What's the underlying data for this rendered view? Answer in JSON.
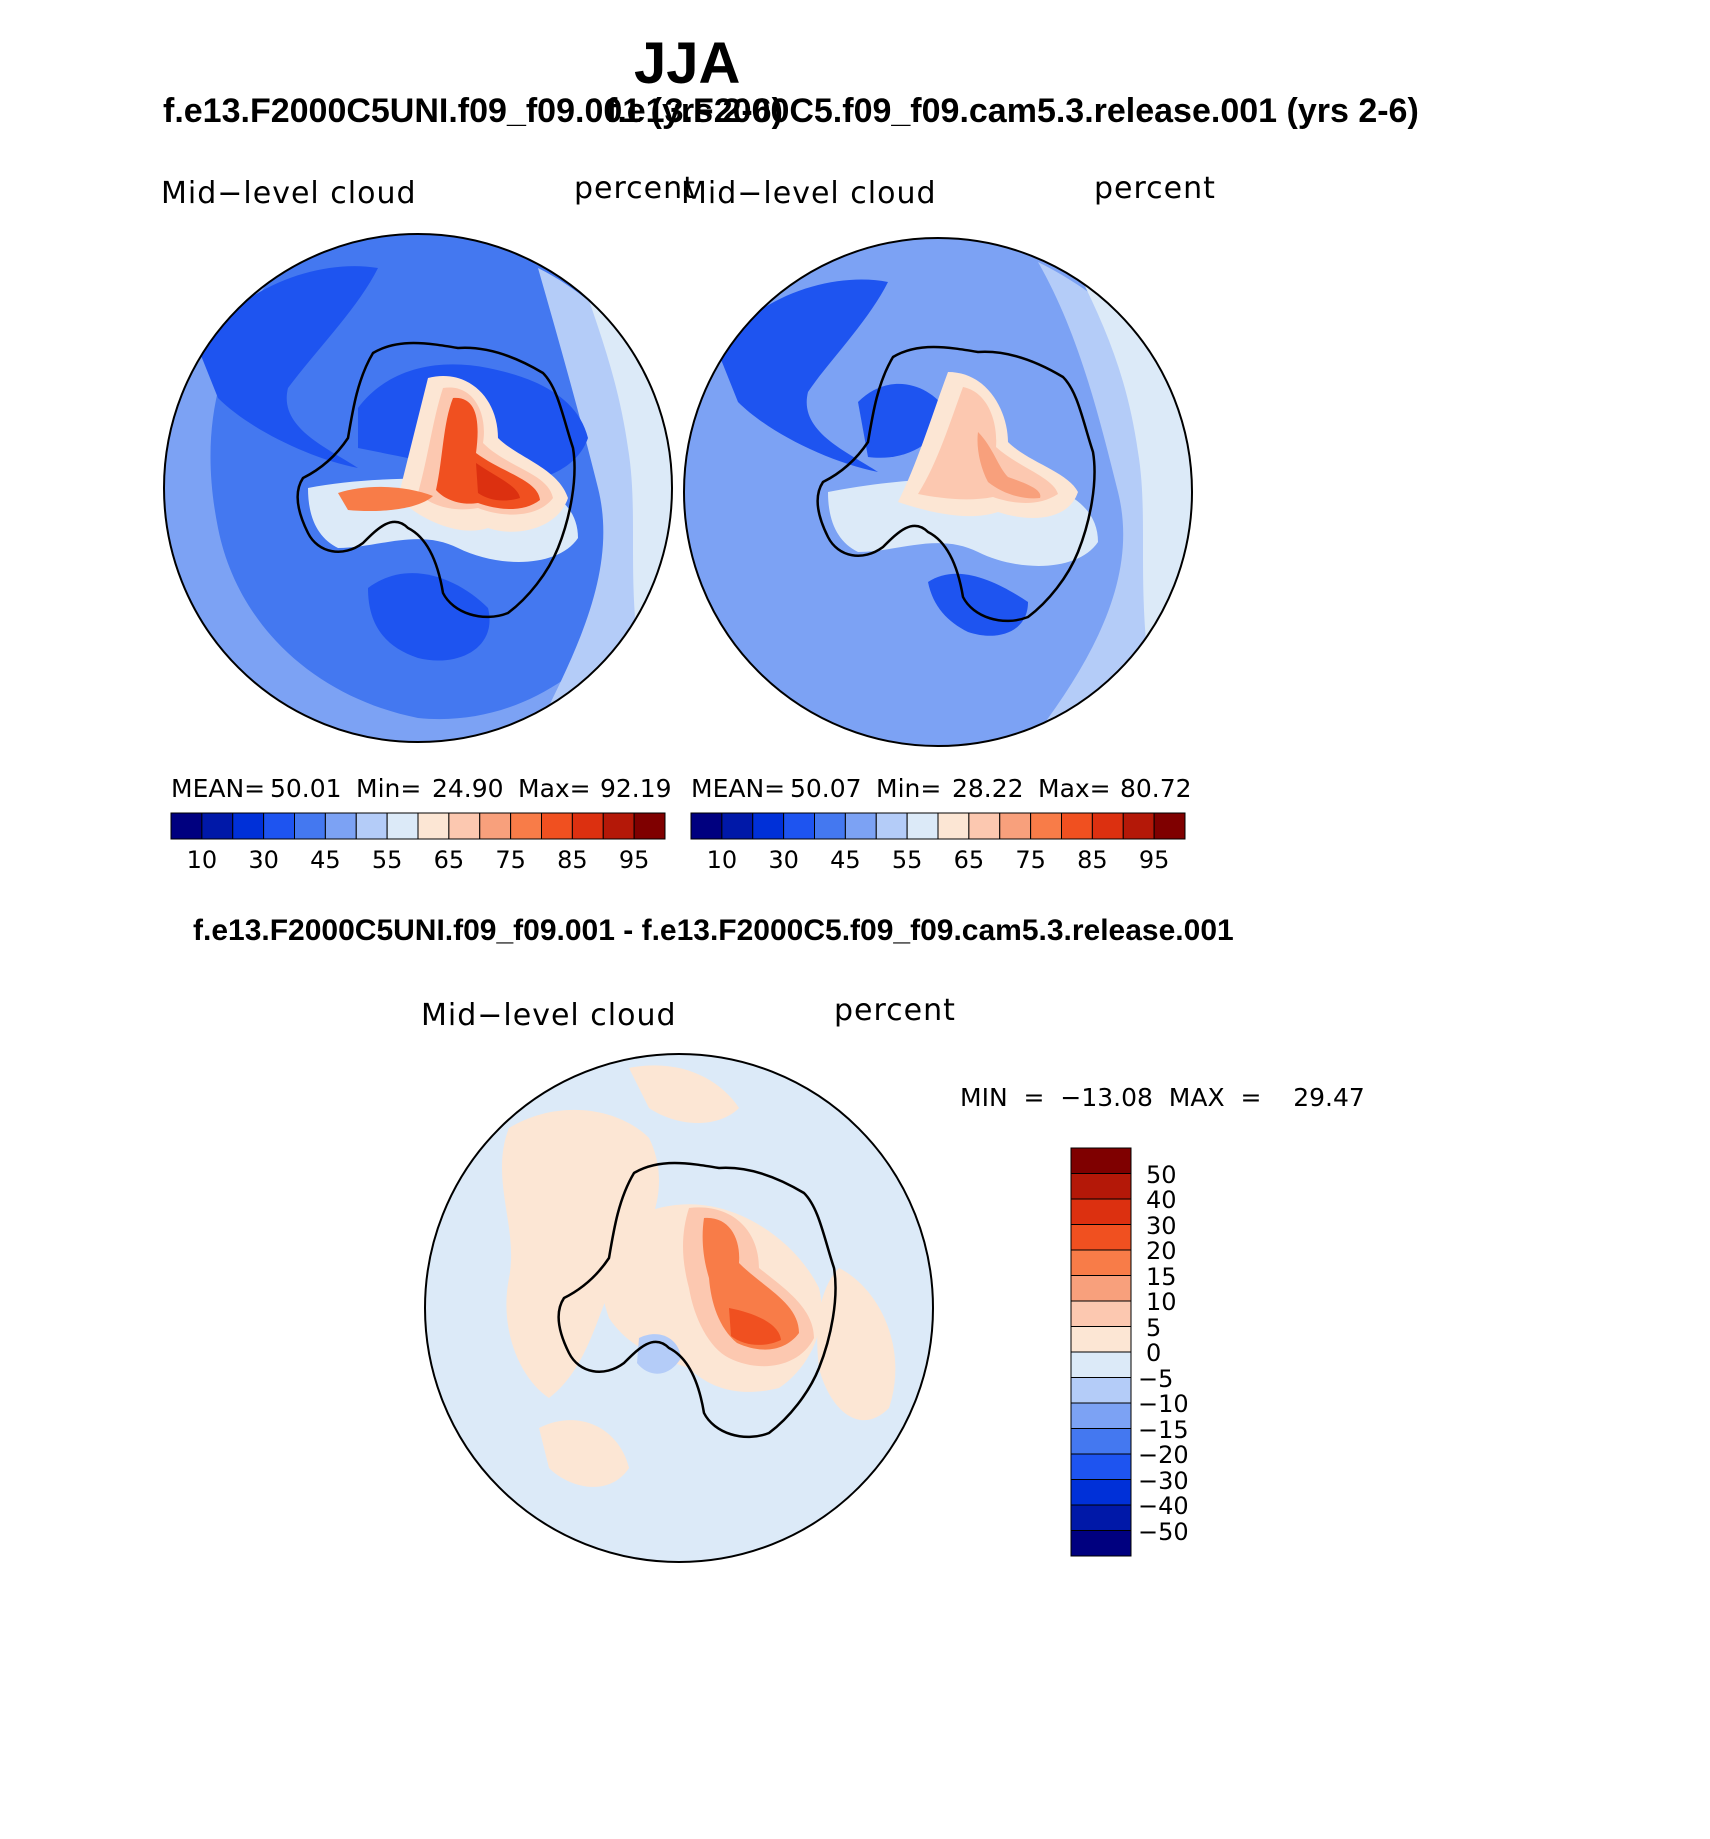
{
  "title": "JJA",
  "panels": [
    {
      "case_title": "f.e13.F2000C5UNI.f09_f09.001 (yrs 2-6)",
      "label_left": "Mid−level  cloud",
      "label_right": "percent",
      "stats": {
        "mean_label": "MEAN=",
        "mean": "50.01",
        "min_label": "Min=",
        "min": "24.90",
        "max_label": "Max=",
        "max": "92.19"
      }
    },
    {
      "case_title": "f.e13.F2000C5.f09_f09.cam5.3.release.001 (yrs 2-6)",
      "label_left": "Mid−level  cloud",
      "label_right": "percent",
      "stats": {
        "mean_label": "MEAN=",
        "mean": "50.07",
        "min_label": "Min=",
        "min": "28.22",
        "max_label": "Max=",
        "max": "80.72"
      }
    }
  ],
  "diff": {
    "title": "f.e13.F2000C5UNI.f09_f09.001 - f.e13.F2000C5.f09_f09.cam5.3.release.001",
    "label_left": "Mid−level  cloud",
    "label_right": "percent",
    "minmax": "MIN  =  −13.08  MAX  =    29.47"
  },
  "colorbar_abs": {
    "colors": [
      "#00007f",
      "#0018a8",
      "#0030d8",
      "#1e54f0",
      "#4478f0",
      "#7ca2f4",
      "#b4ccf8",
      "#dceaf8",
      "#fce6d4",
      "#fcc8b0",
      "#f8a07c",
      "#f87c48",
      "#f05020",
      "#dc3010",
      "#b41808",
      "#7f0000"
    ],
    "tick_labels": [
      "10",
      "30",
      "45",
      "55",
      "65",
      "75",
      "85",
      "95"
    ]
  },
  "colorbar_diff": {
    "colors": [
      "#7f0000",
      "#b41808",
      "#dc3010",
      "#f05020",
      "#f87c48",
      "#f8a07c",
      "#fcc8b0",
      "#fce6d4",
      "#dceaf8",
      "#b4ccf8",
      "#7ca2f4",
      "#4478f0",
      "#1e54f0",
      "#0030d8",
      "#0018a8",
      "#00007f"
    ],
    "tick_labels": [
      "50",
      "40",
      "30",
      "20",
      "15",
      "10",
      "5",
      "0",
      "−5",
      "−10",
      "−15",
      "−20",
      "−30",
      "−40",
      "−50"
    ]
  },
  "field_colors": {
    "ocean_dark": "#1e54f0",
    "ocean_mid": "#4478f0",
    "ocean_light": "#7ca2f4",
    "pale_blue": "#b4ccf8",
    "very_pale_blue": "#dceaf8",
    "peach": "#fce6d4",
    "salmon": "#fcc8b0",
    "orange": "#f87c48",
    "red": "#f05020",
    "dark_red": "#dc3010",
    "coast": "#000000"
  }
}
